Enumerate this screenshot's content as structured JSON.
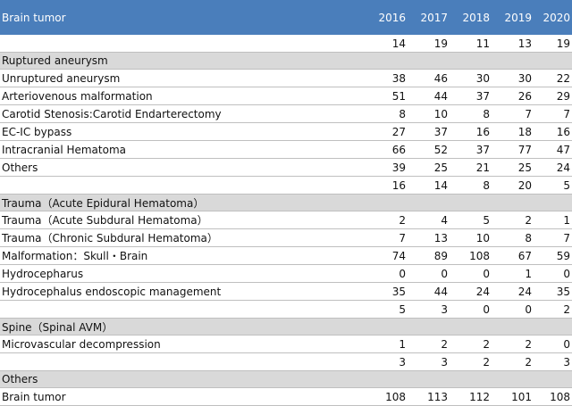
{
  "header": {
    "title": "Brain tumor",
    "years": [
      "2016",
      "2017",
      "2018",
      "2019",
      "2020"
    ]
  },
  "rows": [
    {
      "type": "data",
      "label": "",
      "values": [
        "14",
        "19",
        "11",
        "13",
        "19"
      ]
    },
    {
      "type": "section",
      "label": "Ruptured aneurysm"
    },
    {
      "type": "data",
      "label": "Unruptured aneurysm",
      "values": [
        "38",
        "46",
        "30",
        "30",
        "22"
      ]
    },
    {
      "type": "data",
      "label": "Arteriovenous malformation",
      "values": [
        "51",
        "44",
        "37",
        "26",
        "29"
      ]
    },
    {
      "type": "data",
      "label": "Carotid Stenosis:Carotid Endarterectomy",
      "values": [
        "8",
        "10",
        "8",
        "7",
        "7"
      ]
    },
    {
      "type": "data",
      "label": "EC-IC bypass",
      "values": [
        "27",
        "37",
        "16",
        "18",
        "16"
      ]
    },
    {
      "type": "data",
      "label": "Intracranial Hematoma",
      "values": [
        "66",
        "52",
        "37",
        "77",
        "47"
      ]
    },
    {
      "type": "data",
      "label": "Others",
      "values": [
        "39",
        "25",
        "21",
        "25",
        "24"
      ]
    },
    {
      "type": "data",
      "label": "",
      "values": [
        "16",
        "14",
        "8",
        "20",
        "5"
      ]
    },
    {
      "type": "section",
      "label": "Trauma（Acute Epidural Hematoma）"
    },
    {
      "type": "data",
      "label": "Trauma（Acute Subdural Hematoma）",
      "values": [
        "2",
        "4",
        "5",
        "2",
        "1"
      ]
    },
    {
      "type": "data",
      "label": "Trauma（Chronic Subdural Hematoma）",
      "values": [
        "7",
        "13",
        "10",
        "8",
        "7"
      ]
    },
    {
      "type": "data",
      "label": "Malformation：Skull・Brain",
      "values": [
        "74",
        "89",
        "108",
        "67",
        "59"
      ]
    },
    {
      "type": "data",
      "label": "Hydrocepharus",
      "values": [
        "0",
        "0",
        "0",
        "1",
        "0"
      ]
    },
    {
      "type": "data",
      "label": "Hydrocephalus endoscopic management",
      "values": [
        "35",
        "44",
        "24",
        "24",
        "35"
      ]
    },
    {
      "type": "data",
      "label": "",
      "values": [
        "5",
        "3",
        "0",
        "0",
        "2"
      ]
    },
    {
      "type": "section",
      "label": "Spine（Spinal AVM）"
    },
    {
      "type": "data",
      "label": "Microvascular decompression",
      "values": [
        "1",
        "2",
        "2",
        "2",
        "0"
      ]
    },
    {
      "type": "data",
      "label": "",
      "values": [
        "3",
        "3",
        "2",
        "2",
        "3"
      ]
    },
    {
      "type": "section",
      "label": "Others"
    },
    {
      "type": "data",
      "label": "Brain tumor",
      "values": [
        "108",
        "113",
        "112",
        "101",
        "108"
      ]
    }
  ]
}
